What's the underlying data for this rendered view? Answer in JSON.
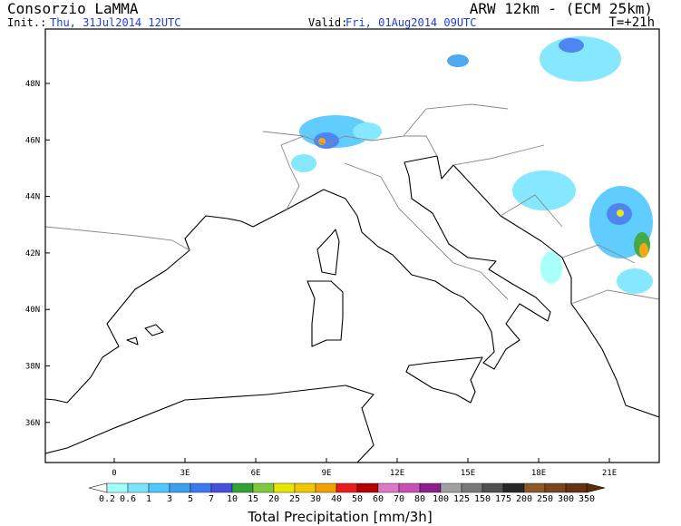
{
  "header": {
    "title": "Consorzio LaMMA",
    "model": "ARW 12km - (ECM 25km)",
    "init_label": "Init.:",
    "init": "Thu, 31Jul2014 12UTC",
    "valid_label": "Valid:",
    "valid": "Fri, 01Aug2014 09UTC",
    "lead": "T=+21h"
  },
  "map": {
    "lat_labels": [
      "48N",
      "46N",
      "44N",
      "42N",
      "40N",
      "38N",
      "36N"
    ],
    "lon_labels": [
      "0",
      "3E",
      "6E",
      "9E",
      "12E",
      "15E",
      "18E",
      "21E"
    ]
  },
  "colorbar": {
    "title": "Total Precipitation [mm/3h]",
    "levels": [
      0.2,
      0.6,
      1,
      3,
      5,
      7,
      10,
      15,
      20,
      25,
      30,
      40,
      50,
      60,
      70,
      80,
      100,
      125,
      150,
      175,
      200,
      250,
      300,
      350
    ],
    "colors": [
      "#a0fffa",
      "#78e6ff",
      "#50c8ff",
      "#3ca0f0",
      "#3c78f0",
      "#4650dc",
      "#32a032",
      "#82c83c",
      "#e6e600",
      "#f0c800",
      "#f0a000",
      "#e61e1e",
      "#b40000",
      "#dc78c8",
      "#c850b4",
      "#8c1e8c",
      "#a0a0a0",
      "#787878",
      "#505050",
      "#282828",
      "#8c5a28",
      "#78461e",
      "#643214"
    ],
    "under_color": "#ffffff",
    "over_color": "#5a2d0a"
  }
}
